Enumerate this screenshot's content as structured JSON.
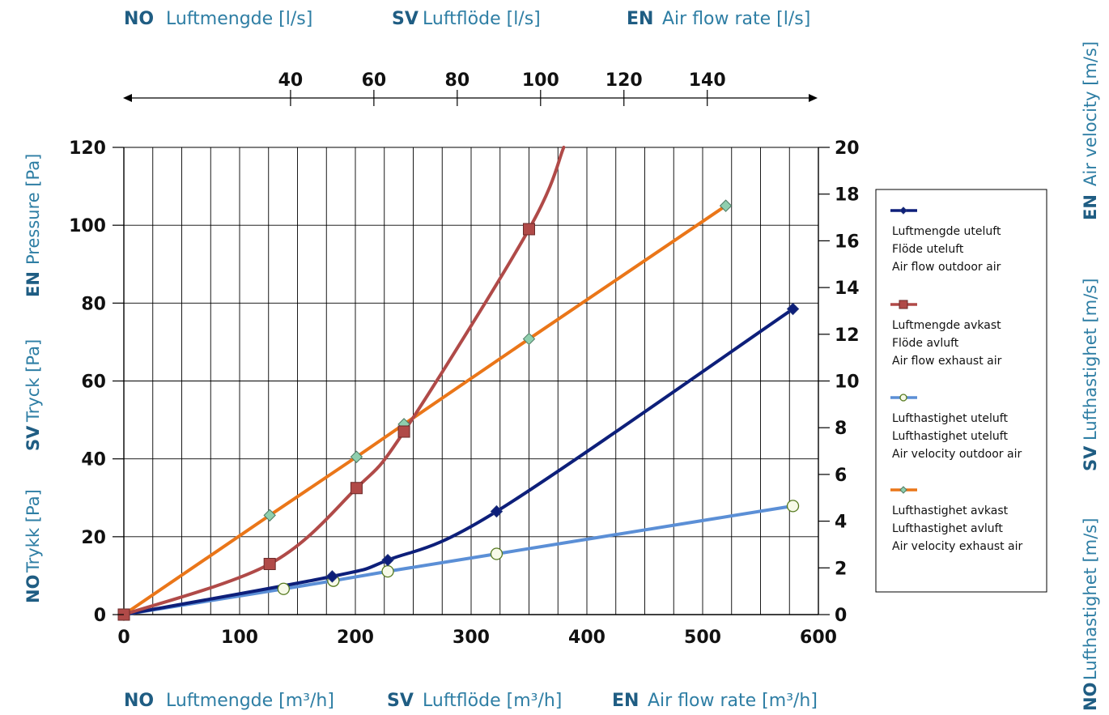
{
  "header": {
    "no_code": "NO",
    "no_label": "Luftmengde [l/s]",
    "sv_code": "SV",
    "sv_label": "Luftflöde [l/s]",
    "en_code": "EN",
    "en_label": "Air flow rate [l/s]"
  },
  "footer": {
    "no_code": "NO",
    "no_label": "Luftmengde [m³/h]",
    "sv_code": "SV",
    "sv_label": "Luftflöde [m³/h]",
    "en_code": "EN",
    "en_label": "Air flow rate [m³/h]"
  },
  "left_axis_title": {
    "no_code": "NO",
    "no_label": "Trykk [Pa]",
    "sv_code": "SV",
    "sv_label": "Tryck [Pa]",
    "en_code": "EN",
    "en_label": "Pressure [Pa]"
  },
  "right_axis_title": {
    "no_code": "NO",
    "no_label": "Lufthastighet [m/s]",
    "sv_code": "SV",
    "sv_label": "Lufthastighet [m/s]",
    "en_code": "EN",
    "en_label": "Air velocity [m/s]"
  },
  "colors": {
    "text": "#1f5d83",
    "outdoor_flow": "#0d1f7a",
    "exhaust_flow": "#b04a48",
    "outdoor_velocity": "#5b8fd6",
    "exhaust_velocity": "#ea7619",
    "diamond_fill": "#8fcfae"
  },
  "chart_data": {
    "type": "line",
    "x_top_ticks_ls": [
      40,
      60,
      80,
      100,
      120,
      140
    ],
    "x_ticks": [
      0,
      100,
      200,
      300,
      400,
      500,
      600
    ],
    "x_range": [
      0,
      600
    ],
    "y_left_ticks": [
      0,
      20,
      40,
      60,
      80,
      100,
      120
    ],
    "y_left_range": [
      0,
      120
    ],
    "y_right_ticks": [
      0,
      2,
      4,
      6,
      8,
      10,
      12,
      14,
      16,
      18,
      20
    ],
    "y_right_range": [
      0,
      20
    ],
    "grid": true,
    "legend_placement": "right",
    "series": [
      {
        "name": "Luftmengde uteluft",
        "legend_lines": [
          "Luftmengde uteluft",
          "Flöde uteluft",
          "Air flow outdoor air"
        ],
        "axis": "left",
        "marker": "diamond",
        "color_key": "outdoor_flow",
        "points": [
          [
            0,
            0
          ],
          [
            180,
            9.8
          ],
          [
            228,
            14
          ],
          [
            322,
            26.5
          ],
          [
            578,
            78.5
          ]
        ]
      },
      {
        "name": "Luftmengde avkast",
        "legend_lines": [
          "Luftmengde avkast",
          "Flöde avluft",
          "Air flow exhaust air"
        ],
        "axis": "left",
        "marker": "square",
        "color_key": "exhaust_flow",
        "points": [
          [
            0,
            0
          ],
          [
            126,
            13
          ],
          [
            201,
            32.5
          ],
          [
            242,
            47
          ],
          [
            350,
            99
          ],
          [
            380,
            120
          ]
        ]
      },
      {
        "name": "Lufthastighet uteluft",
        "legend_lines": [
          "Lufthastighet uteluft",
          "Lufthastighet uteluft",
          "Air velocity outdoor air"
        ],
        "axis": "right",
        "marker": "circle",
        "color_key": "outdoor_velocity",
        "points": [
          [
            0,
            0
          ],
          [
            138,
            1.1
          ],
          [
            181,
            1.45
          ],
          [
            228,
            1.85
          ],
          [
            322,
            2.6
          ],
          [
            578,
            4.65
          ]
        ]
      },
      {
        "name": "Lufthastighet avkast",
        "legend_lines": [
          "Lufthastighet avkast",
          "Lufthastighet avluft",
          "Air velocity exhaust air"
        ],
        "axis": "right",
        "marker": "diamond",
        "color_key": "exhaust_velocity",
        "points": [
          [
            0,
            0
          ],
          [
            126,
            4.25
          ],
          [
            201,
            6.75
          ],
          [
            242,
            8.15
          ],
          [
            350,
            11.8
          ],
          [
            520,
            17.5
          ]
        ]
      }
    ]
  }
}
